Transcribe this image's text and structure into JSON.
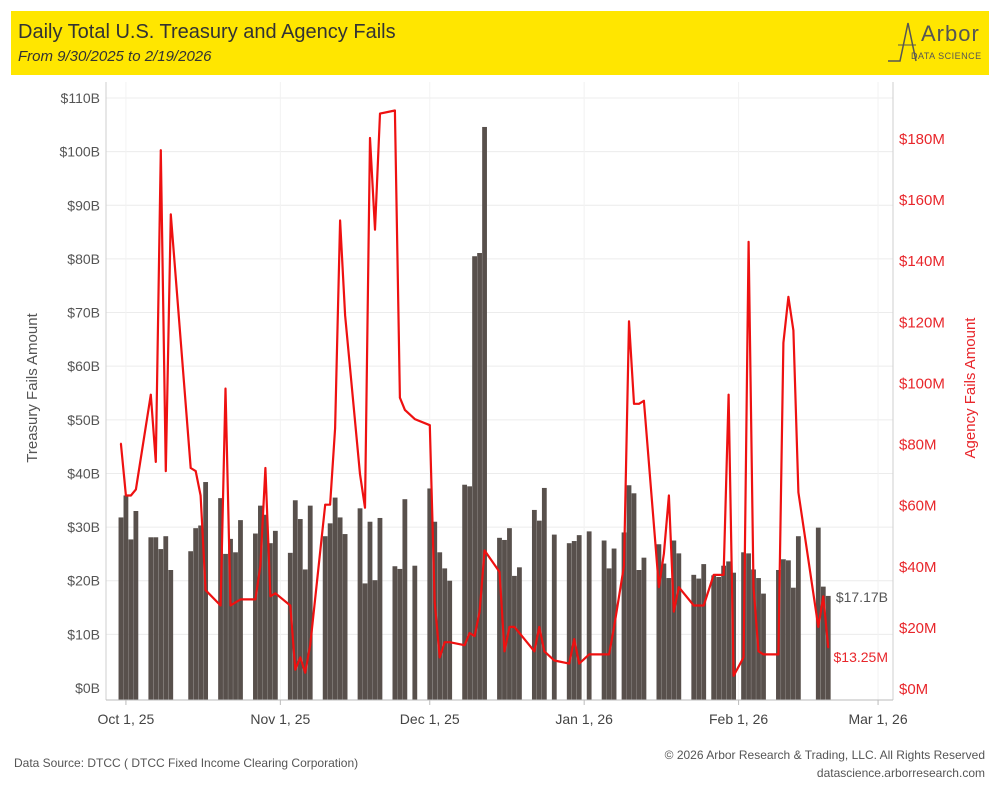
{
  "header": {
    "title": "Daily Total U.S. Treasury and Agency Fails",
    "subtitle": "From 9/30/2025 to 2/19/2026",
    "logo_word": "Arbor",
    "logo_sub": "DATA SCIENCE",
    "background_color": "#ffe600"
  },
  "footer": {
    "source": "Data Source: DTCC ( DTCC Fixed Income Clearing Corporation)",
    "copyright": "© 2026 Arbor Research & Trading, LLC. All Rights Reserved",
    "website": "datascience.arborresearch.com"
  },
  "chart_data": {
    "type": "bar",
    "title": "Daily Total U.S. Treasury and Agency Fails",
    "subtitle": "From 9/30/2025 to 2/19/2026",
    "xlabel": "",
    "ylabel_left": "Treasury Fails Amount",
    "ylabel_right": "Agency Fails Amount",
    "x_range": [
      "2025-09-27",
      "2026-03-04"
    ],
    "x_ticks": [
      {
        "date": "2025-10-01",
        "label": "Oct 1, 25"
      },
      {
        "date": "2025-11-01",
        "label": "Nov 1, 25"
      },
      {
        "date": "2025-12-01",
        "label": "Dec 1, 25"
      },
      {
        "date": "2026-01-01",
        "label": "Jan 1, 26"
      },
      {
        "date": "2026-02-01",
        "label": "Feb 1, 26"
      },
      {
        "date": "2026-03-01",
        "label": "Mar 1, 26"
      }
    ],
    "y_left": {
      "range": [
        0,
        110
      ],
      "unit": "B",
      "ticks": [
        0,
        10,
        20,
        30,
        40,
        50,
        60,
        70,
        80,
        90,
        100,
        110
      ],
      "tick_labels": [
        "$0B",
        "$10B",
        "$20B",
        "$30B",
        "$40B",
        "$50B",
        "$60B",
        "$70B",
        "$80B",
        "$90B",
        "$100B",
        "$110B"
      ]
    },
    "y_right": {
      "range": [
        0,
        198
      ],
      "unit": "M",
      "ticks": [
        0,
        20,
        40,
        60,
        80,
        100,
        120,
        140,
        160,
        180
      ],
      "tick_labels": [
        "$0M",
        "$20M",
        "$40M",
        "$60M",
        "$80M",
        "$100M",
        "$120M",
        "$140M",
        "$160M",
        "$180M"
      ]
    },
    "grid": true,
    "colors": {
      "treasury": "#58504c",
      "agency": "#ee1111",
      "axis_right_text": "#e8262b"
    },
    "series": [
      {
        "name": "Treasury Fails",
        "type": "bar",
        "axis": "left",
        "points": [
          [
            "2025-09-30",
            31.8
          ],
          [
            "2025-10-01",
            35.9
          ],
          [
            "2025-10-02",
            27.7
          ],
          [
            "2025-10-03",
            33.0
          ],
          [
            "2025-10-06",
            28.1
          ],
          [
            "2025-10-07",
            28.1
          ],
          [
            "2025-10-08",
            25.9
          ],
          [
            "2025-10-09",
            28.3
          ],
          [
            "2025-10-10",
            22.0
          ],
          [
            "2025-10-14",
            25.5
          ],
          [
            "2025-10-15",
            29.8
          ],
          [
            "2025-10-16",
            30.3
          ],
          [
            "2025-10-17",
            38.4
          ],
          [
            "2025-10-20",
            35.4
          ],
          [
            "2025-10-21",
            25.0
          ],
          [
            "2025-10-22",
            27.8
          ],
          [
            "2025-10-23",
            25.3
          ],
          [
            "2025-10-24",
            31.3
          ],
          [
            "2025-10-27",
            28.8
          ],
          [
            "2025-10-28",
            34.0
          ],
          [
            "2025-10-29",
            32.3
          ],
          [
            "2025-10-30",
            27.0
          ],
          [
            "2025-10-31",
            29.3
          ],
          [
            "2025-11-03",
            25.2
          ],
          [
            "2025-11-04",
            35.0
          ],
          [
            "2025-11-05",
            31.5
          ],
          [
            "2025-11-06",
            22.1
          ],
          [
            "2025-11-07",
            34.0
          ],
          [
            "2025-11-10",
            28.3
          ],
          [
            "2025-11-11",
            30.7
          ],
          [
            "2025-11-12",
            35.5
          ],
          [
            "2025-11-13",
            31.8
          ],
          [
            "2025-11-14",
            28.7
          ],
          [
            "2025-11-17",
            33.5
          ],
          [
            "2025-11-18",
            19.5
          ],
          [
            "2025-11-19",
            31.0
          ],
          [
            "2025-11-20",
            20.1
          ],
          [
            "2025-11-21",
            31.7
          ],
          [
            "2025-11-24",
            22.7
          ],
          [
            "2025-11-25",
            22.2
          ],
          [
            "2025-11-26",
            35.2
          ],
          [
            "2025-11-28",
            22.8
          ],
          [
            "2025-12-01",
            37.2
          ],
          [
            "2025-12-02",
            31.0
          ],
          [
            "2025-12-03",
            25.3
          ],
          [
            "2025-12-04",
            22.3
          ],
          [
            "2025-12-05",
            20.0
          ],
          [
            "2025-12-08",
            37.9
          ],
          [
            "2025-12-09",
            37.6
          ],
          [
            "2025-12-10",
            80.5
          ],
          [
            "2025-12-11",
            81.1
          ],
          [
            "2025-12-12",
            104.6
          ],
          [
            "2025-12-15",
            28.0
          ],
          [
            "2025-12-16",
            27.6
          ],
          [
            "2025-12-17",
            29.8
          ],
          [
            "2025-12-18",
            20.9
          ],
          [
            "2025-12-19",
            22.5
          ],
          [
            "2025-12-22",
            33.2
          ],
          [
            "2025-12-23",
            31.2
          ],
          [
            "2025-12-24",
            37.3
          ],
          [
            "2025-12-26",
            28.6
          ],
          [
            "2025-12-29",
            27.0
          ],
          [
            "2025-12-30",
            27.4
          ],
          [
            "2025-12-31",
            28.5
          ],
          [
            "2026-01-02",
            29.2
          ],
          [
            "2026-01-05",
            27.5
          ],
          [
            "2026-01-06",
            22.3
          ],
          [
            "2026-01-07",
            26.0
          ],
          [
            "2026-01-09",
            29.0
          ],
          [
            "2026-01-10",
            37.8
          ],
          [
            "2026-01-11",
            36.3
          ],
          [
            "2026-01-12",
            22.0
          ],
          [
            "2026-01-13",
            24.3
          ],
          [
            "2026-01-16",
            26.8
          ],
          [
            "2026-01-17",
            23.2
          ],
          [
            "2026-01-18",
            20.5
          ],
          [
            "2026-01-19",
            27.5
          ],
          [
            "2026-01-20",
            25.1
          ],
          [
            "2026-01-23",
            21.1
          ],
          [
            "2026-01-24",
            20.4
          ],
          [
            "2026-01-25",
            23.1
          ],
          [
            "2026-01-27",
            21.0
          ],
          [
            "2026-01-28",
            20.7
          ],
          [
            "2026-01-29",
            22.8
          ],
          [
            "2026-01-30",
            23.6
          ],
          [
            "2026-01-31",
            21.5
          ],
          [
            "2026-02-02",
            25.3
          ],
          [
            "2026-02-03",
            25.1
          ],
          [
            "2026-02-04",
            22.1
          ],
          [
            "2026-02-05",
            20.5
          ],
          [
            "2026-02-06",
            17.6
          ],
          [
            "2026-02-09",
            22.0
          ],
          [
            "2026-02-10",
            24.0
          ],
          [
            "2026-02-11",
            23.8
          ],
          [
            "2026-02-12",
            18.7
          ],
          [
            "2026-02-13",
            28.3
          ],
          [
            "2026-02-17",
            29.9
          ],
          [
            "2026-02-18",
            18.9
          ],
          [
            "2026-02-19",
            17.17
          ]
        ]
      },
      {
        "name": "Agency Fails",
        "type": "line",
        "axis": "right",
        "points": [
          [
            "2025-09-30",
            80
          ],
          [
            "2025-10-01",
            63
          ],
          [
            "2025-10-02",
            63
          ],
          [
            "2025-10-03",
            65
          ],
          [
            "2025-10-06",
            96
          ],
          [
            "2025-10-07",
            74
          ],
          [
            "2025-10-08",
            176
          ],
          [
            "2025-10-09",
            71
          ],
          [
            "2025-10-10",
            155
          ],
          [
            "2025-10-14",
            72
          ],
          [
            "2025-10-15",
            71
          ],
          [
            "2025-10-16",
            63
          ],
          [
            "2025-10-17",
            32
          ],
          [
            "2025-10-20",
            27
          ],
          [
            "2025-10-21",
            98
          ],
          [
            "2025-10-22",
            27
          ],
          [
            "2025-10-23",
            28
          ],
          [
            "2025-10-24",
            29
          ],
          [
            "2025-10-27",
            29
          ],
          [
            "2025-10-28",
            40
          ],
          [
            "2025-10-29",
            72
          ],
          [
            "2025-10-30",
            30
          ],
          [
            "2025-10-31",
            31
          ],
          [
            "2025-11-03",
            27
          ],
          [
            "2025-11-04",
            6
          ],
          [
            "2025-11-05",
            10
          ],
          [
            "2025-11-06",
            5
          ],
          [
            "2025-11-07",
            14
          ],
          [
            "2025-11-10",
            60
          ],
          [
            "2025-11-11",
            60
          ],
          [
            "2025-11-12",
            85
          ],
          [
            "2025-11-13",
            153
          ],
          [
            "2025-11-14",
            122
          ],
          [
            "2025-11-17",
            70
          ],
          [
            "2025-11-18",
            59
          ],
          [
            "2025-11-19",
            180
          ],
          [
            "2025-11-20",
            150
          ],
          [
            "2025-11-21",
            188
          ],
          [
            "2025-11-24",
            189
          ],
          [
            "2025-11-25",
            95
          ],
          [
            "2025-11-26",
            91
          ],
          [
            "2025-11-28",
            88
          ],
          [
            "2025-12-01",
            86
          ],
          [
            "2025-12-02",
            28
          ],
          [
            "2025-12-03",
            10
          ],
          [
            "2025-12-04",
            15
          ],
          [
            "2025-12-05",
            15
          ],
          [
            "2025-12-08",
            14
          ],
          [
            "2025-12-09",
            18
          ],
          [
            "2025-12-10",
            17
          ],
          [
            "2025-12-11",
            25
          ],
          [
            "2025-12-12",
            45
          ],
          [
            "2025-12-15",
            38
          ],
          [
            "2025-12-16",
            12
          ],
          [
            "2025-12-17",
            20
          ],
          [
            "2025-12-18",
            20
          ],
          [
            "2025-12-19",
            18
          ],
          [
            "2025-12-22",
            12
          ],
          [
            "2025-12-23",
            20
          ],
          [
            "2025-12-24",
            12
          ],
          [
            "2025-12-26",
            9
          ],
          [
            "2025-12-29",
            8
          ],
          [
            "2025-12-30",
            16
          ],
          [
            "2025-12-31",
            8
          ],
          [
            "2026-01-02",
            11
          ],
          [
            "2026-01-05",
            11
          ],
          [
            "2026-01-06",
            11
          ],
          [
            "2026-01-07",
            20
          ],
          [
            "2026-01-09",
            40
          ],
          [
            "2026-01-10",
            120
          ],
          [
            "2026-01-11",
            93
          ],
          [
            "2026-01-12",
            93
          ],
          [
            "2026-01-13",
            94
          ],
          [
            "2026-01-16",
            33
          ],
          [
            "2026-01-17",
            44
          ],
          [
            "2026-01-18",
            63
          ],
          [
            "2026-01-19",
            25
          ],
          [
            "2026-01-20",
            33
          ],
          [
            "2026-01-23",
            27
          ],
          [
            "2026-01-24",
            27
          ],
          [
            "2026-01-25",
            27
          ],
          [
            "2026-01-27",
            37
          ],
          [
            "2026-01-28",
            37
          ],
          [
            "2026-01-29",
            37
          ],
          [
            "2026-01-30",
            96
          ],
          [
            "2026-01-31",
            4
          ],
          [
            "2026-02-02",
            10
          ],
          [
            "2026-02-03",
            146
          ],
          [
            "2026-02-04",
            33
          ],
          [
            "2026-02-05",
            12
          ],
          [
            "2026-02-06",
            11
          ],
          [
            "2026-02-09",
            11
          ],
          [
            "2026-02-10",
            113
          ],
          [
            "2026-02-11",
            128
          ],
          [
            "2026-02-12",
            117
          ],
          [
            "2026-02-13",
            64
          ],
          [
            "2026-02-17",
            20
          ],
          [
            "2026-02-18",
            30
          ],
          [
            "2026-02-19",
            13.25
          ]
        ]
      }
    ],
    "annotations": [
      {
        "text": "$17.17B",
        "series": "Treasury Fails",
        "date": "2026-02-19",
        "value": 17.17
      },
      {
        "text": "$13.25M",
        "series": "Agency Fails",
        "date": "2026-02-19",
        "value": 13.25
      }
    ]
  }
}
